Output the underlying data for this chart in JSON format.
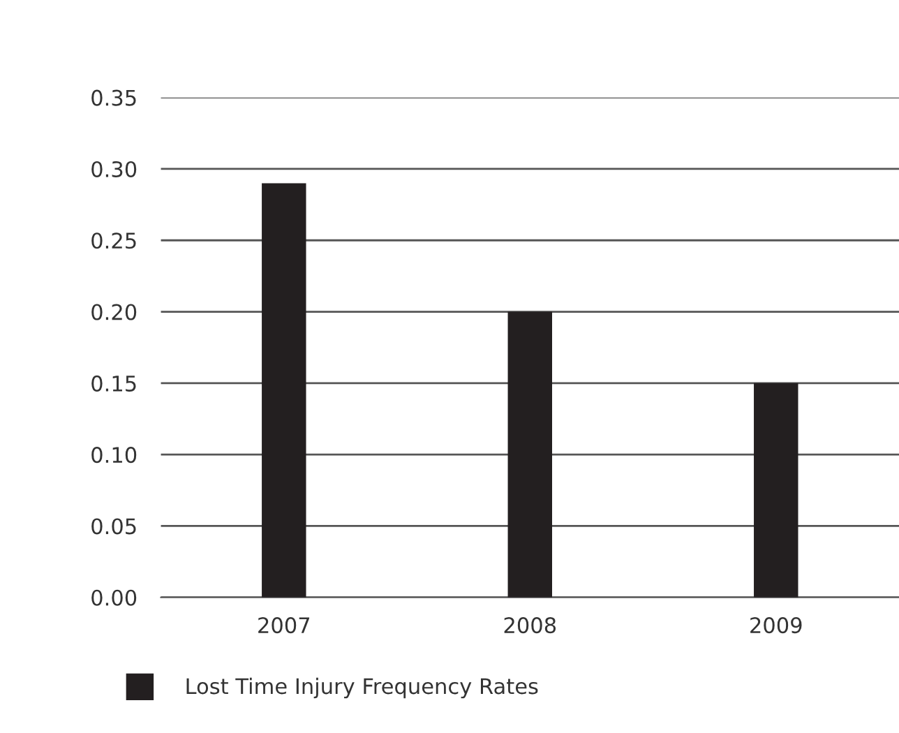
{
  "chart_data": {
    "type": "bar",
    "categories": [
      "2007",
      "2008",
      "2009"
    ],
    "series": [
      {
        "name": "Lost Time Injury Frequency Rates",
        "color": "#231f20",
        "values": [
          0.29,
          0.2,
          0.15
        ]
      }
    ],
    "ylim": [
      0,
      0.35
    ],
    "yticks": [
      {
        "value": 0,
        "label": "0.00"
      },
      {
        "value": 0.05,
        "label": "0.05"
      },
      {
        "value": 0.1,
        "label": "0.10"
      },
      {
        "value": 0.15,
        "label": "0.15"
      },
      {
        "value": 0.2,
        "label": "0.20"
      },
      {
        "value": 0.25,
        "label": "0.25"
      },
      {
        "value": 0.3,
        "label": "0.30"
      },
      {
        "value": 0.35,
        "label": "0.35"
      }
    ],
    "grid": "y",
    "legend": "bottom"
  }
}
